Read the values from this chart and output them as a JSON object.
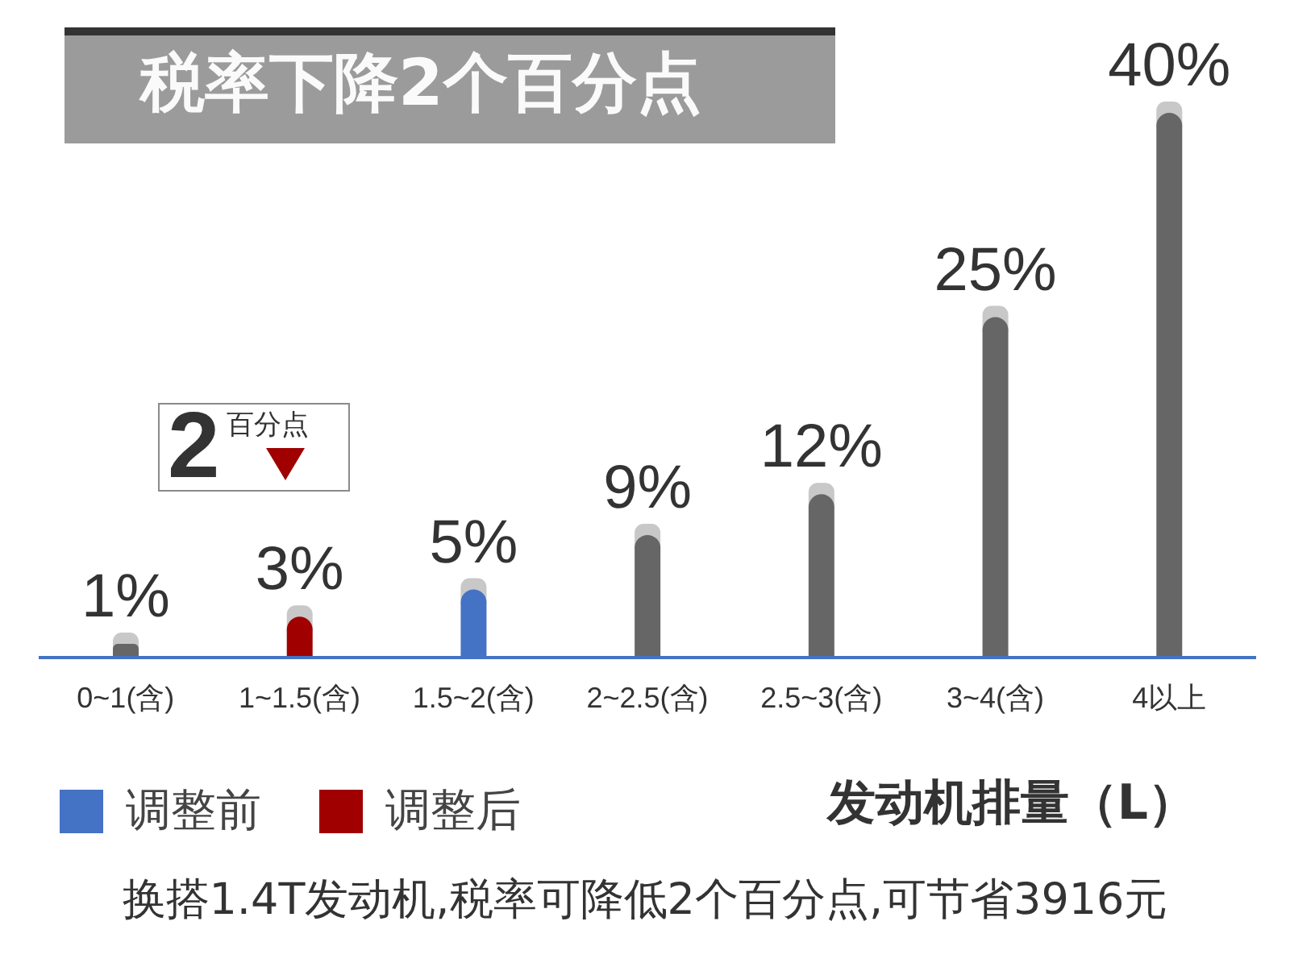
{
  "chart_data": {
    "type": "bar",
    "title": "税率下降2个百分点",
    "xlabel": "发动机排量（L）",
    "categories": [
      "0~1(含)",
      "1~1.5(含)",
      "1.5~2(含)",
      "2~2.5(含)",
      "2.5~3(含)",
      "3~4(含)",
      "4以上"
    ],
    "stacked": true,
    "series": [
      {
        "color": "#666666",
        "values": [
          1,
          null,
          null,
          9,
          12,
          25,
          40
        ],
        "value_labels": [
          "1%",
          null,
          null,
          "9%",
          "12%",
          "25%",
          "40%"
        ]
      },
      {
        "name": "调整前",
        "color": "#4472c4",
        "values": [
          null,
          null,
          5,
          null,
          null,
          null,
          null
        ],
        "value_labels": [
          null,
          null,
          "5%",
          null,
          null,
          null,
          null
        ]
      },
      {
        "name": "调整后",
        "color": "#a00000",
        "values": [
          null,
          3,
          null,
          null,
          null,
          null,
          null
        ],
        "value_labels": [
          null,
          "3%",
          null,
          null,
          null,
          null,
          null
        ]
      }
    ],
    "legend": "bottom left",
    "annotations": [
      "2百分点",
      "换搭1.4T发动机,税率可降低2个百分点,可节省3916元"
    ]
  }
}
